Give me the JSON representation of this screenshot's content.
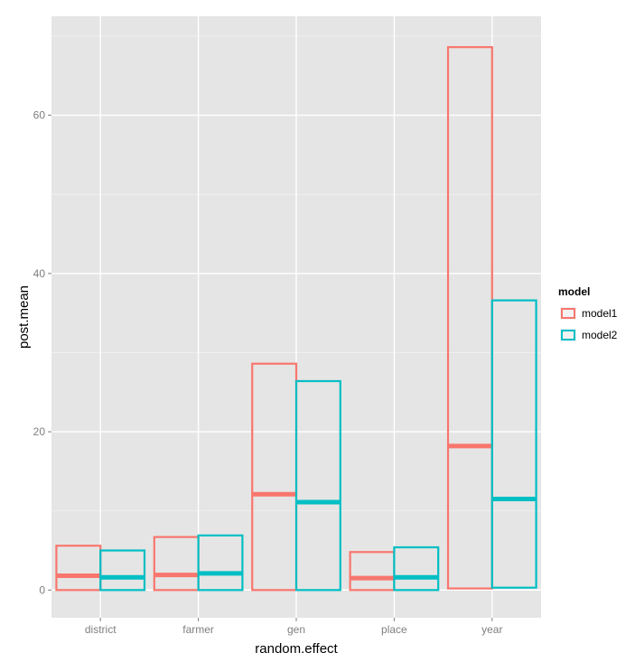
{
  "chart_data": {
    "type": "bar",
    "subtype": "dodged-crossbar",
    "title": "",
    "xlabel": "random.effect",
    "ylabel": "post.mean",
    "categories": [
      "district",
      "farmer",
      "gen",
      "place",
      "year"
    ],
    "ylim": [
      -3.5,
      72.5
    ],
    "yticks": [
      0,
      20,
      40,
      60
    ],
    "ytick_labels": [
      "0",
      "20",
      "40",
      "60"
    ],
    "grid": true,
    "legend": {
      "title": "model",
      "position": "right"
    },
    "series": [
      {
        "name": "model1",
        "color": "#F8766D",
        "lower": [
          0,
          0,
          0,
          0,
          0.2
        ],
        "mean": [
          1.8,
          1.9,
          12.1,
          1.5,
          18.2
        ],
        "upper": [
          5.6,
          6.7,
          28.6,
          4.8,
          68.6
        ]
      },
      {
        "name": "model2",
        "color": "#00BFC4",
        "lower": [
          0,
          0,
          0,
          0,
          0.3
        ],
        "mean": [
          1.6,
          2.1,
          11.1,
          1.6,
          11.5
        ],
        "upper": [
          5.0,
          6.9,
          26.4,
          5.4,
          36.6
        ]
      }
    ]
  }
}
